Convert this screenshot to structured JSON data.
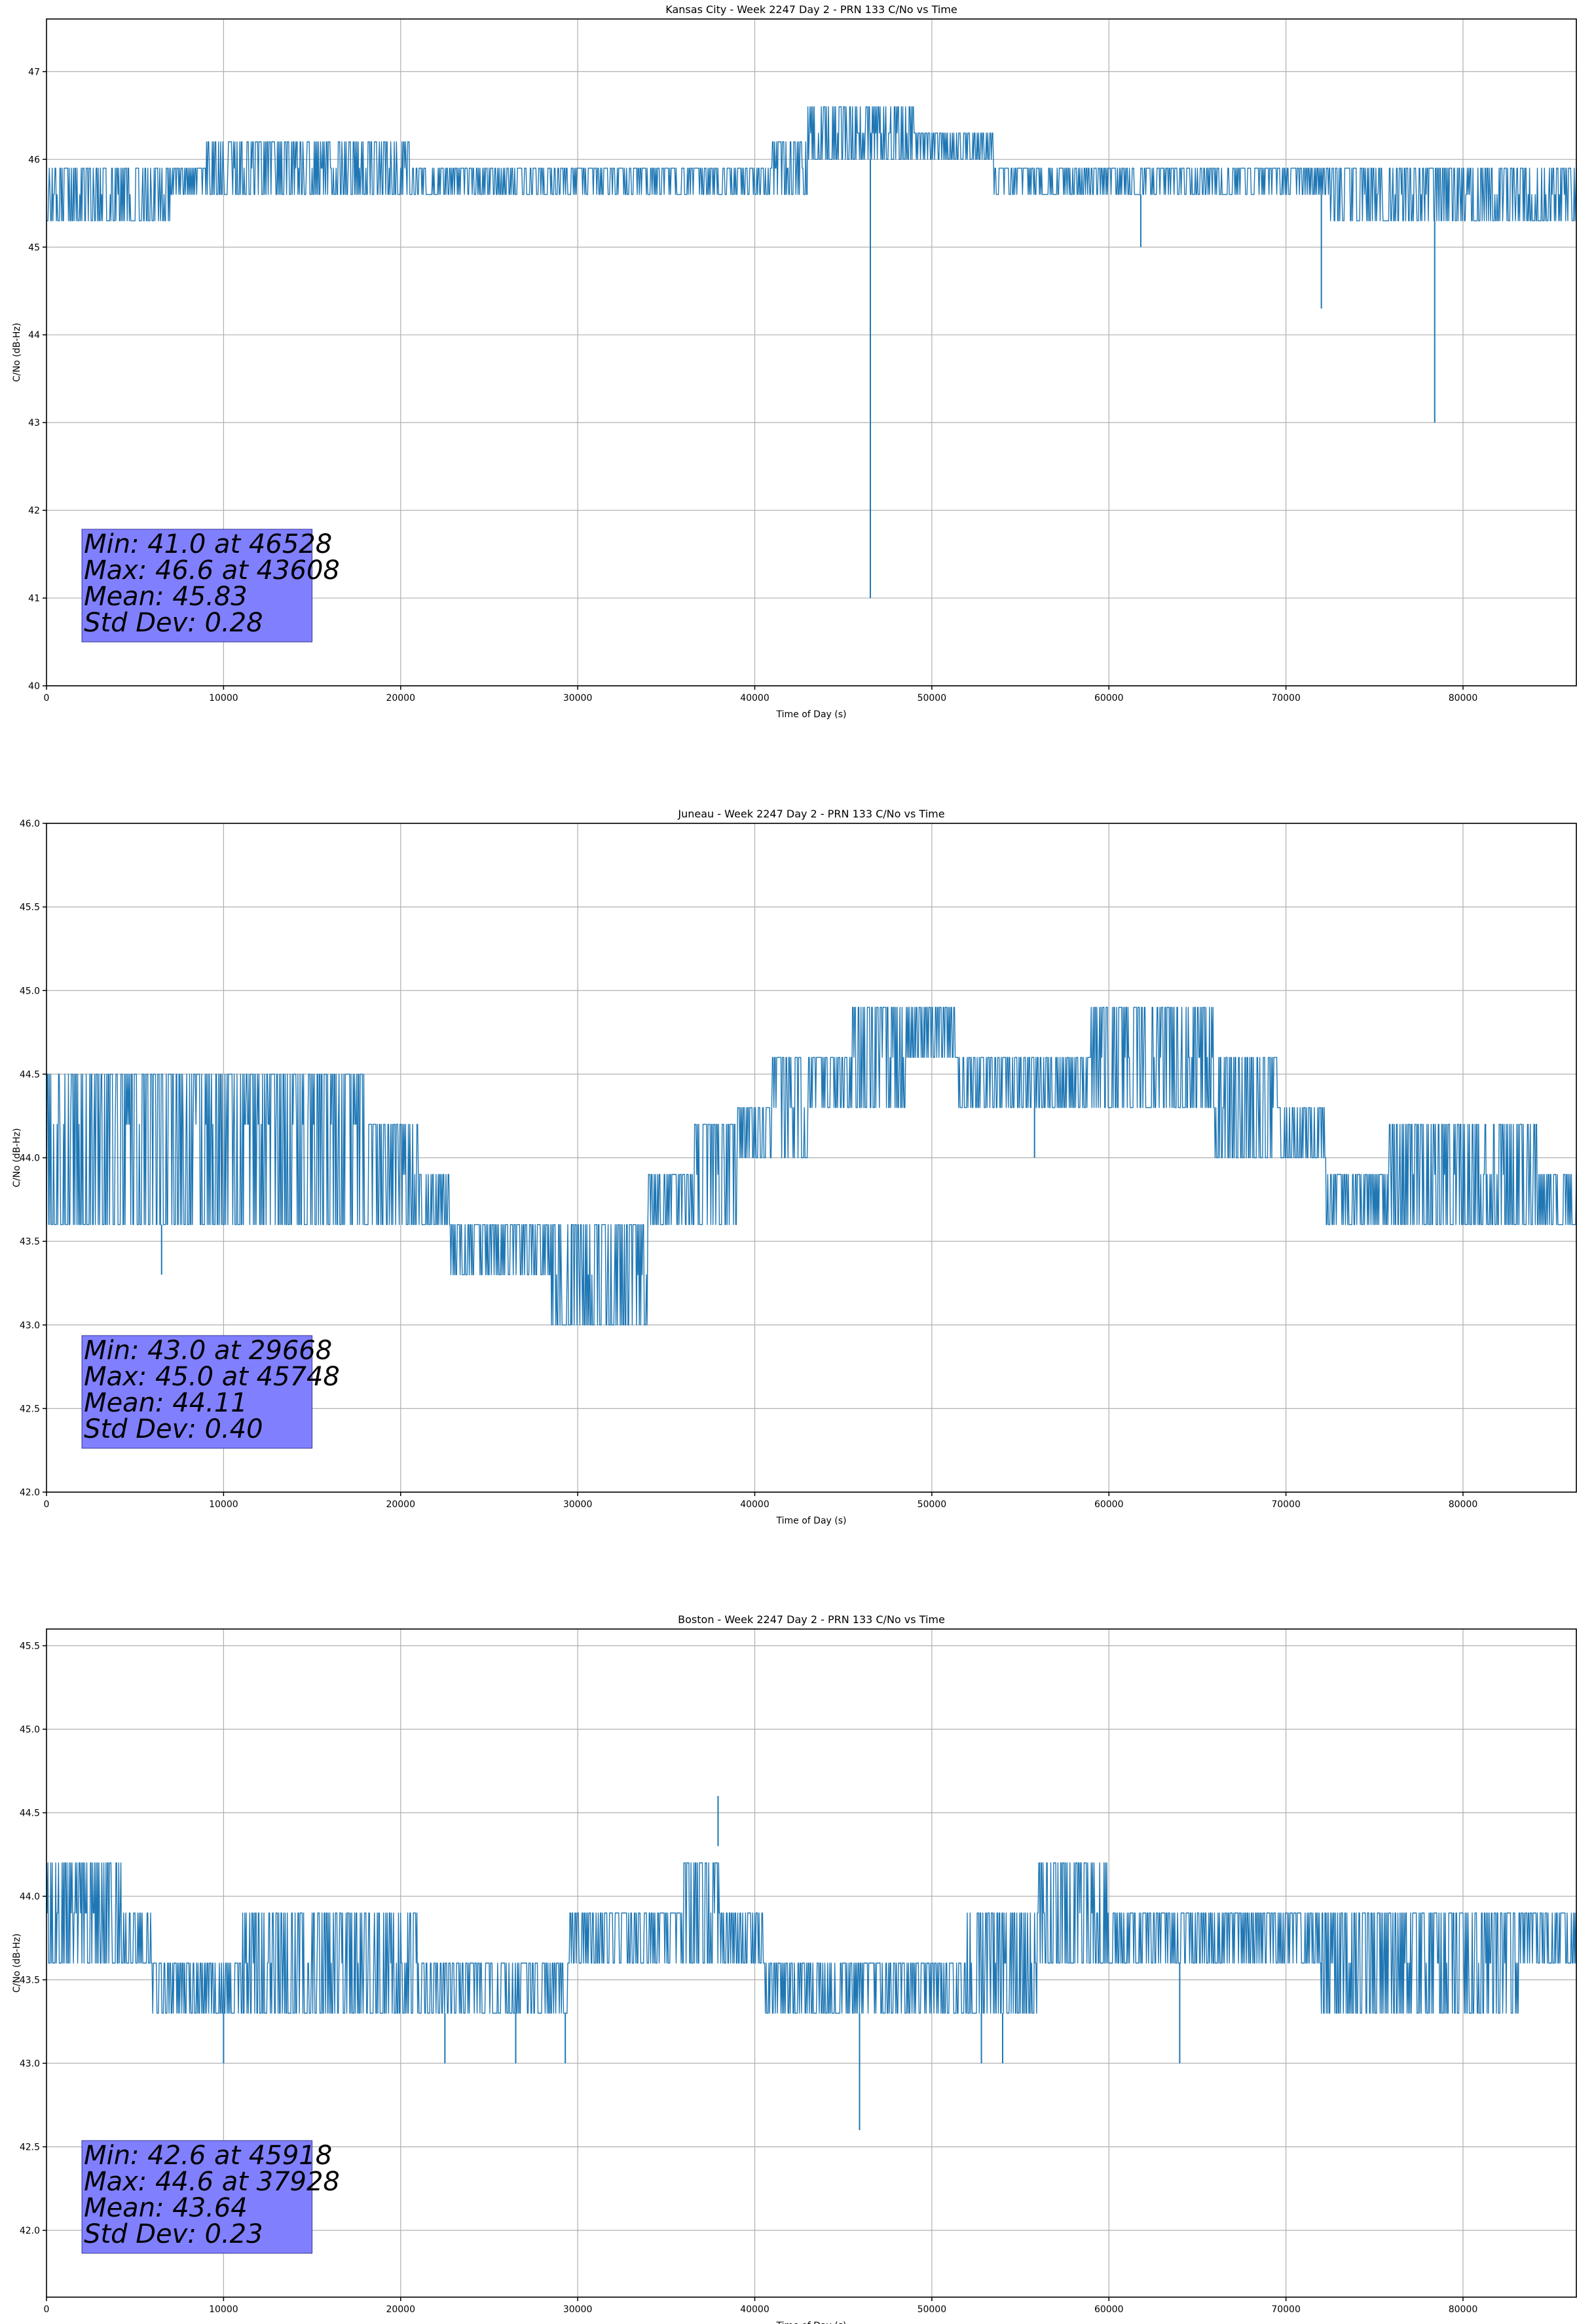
{
  "chart_data": [
    {
      "type": "line",
      "title": "Kansas City - Week 2247 Day 2 - PRN 133 C/No vs Time",
      "xlabel": "Time of Day (s)",
      "ylabel": "C/No (dB-Hz)",
      "xlim": [
        0,
        86400
      ],
      "ylim": [
        40,
        47.6
      ],
      "xticks": [
        0,
        10000,
        20000,
        30000,
        40000,
        50000,
        60000,
        70000,
        80000
      ],
      "xtick_labels": [
        "0",
        "10000",
        "20000",
        "30000",
        "40000",
        "50000",
        "60000",
        "70000",
        "80000"
      ],
      "yticks": [
        40,
        41,
        42,
        43,
        44,
        45,
        46,
        47
      ],
      "ytick_labels": [
        "40",
        "41",
        "42",
        "43",
        "44",
        "45",
        "46",
        "47"
      ],
      "grid": true,
      "color": "#1f77b4",
      "series": [
        {
          "name": "C/No",
          "band": [
            [
              0,
              45.3,
              46.0
            ],
            [
              3000,
              45.3,
              46.0
            ],
            [
              6000,
              45.3,
              46.0
            ],
            [
              8000,
              45.6,
              46.0
            ],
            [
              10000,
              45.6,
              46.3
            ],
            [
              14000,
              45.6,
              46.3
            ],
            [
              18000,
              45.6,
              46.3
            ],
            [
              20000,
              45.6,
              46.3
            ],
            [
              21000,
              45.6,
              46.0
            ],
            [
              25000,
              45.6,
              46.0
            ],
            [
              30000,
              45.6,
              46.0
            ],
            [
              35000,
              45.6,
              46.0
            ],
            [
              40000,
              45.6,
              46.0
            ],
            [
              42000,
              45.6,
              46.3
            ],
            [
              44000,
              46.0,
              46.6
            ],
            [
              48000,
              46.0,
              46.6
            ],
            [
              50000,
              46.0,
              46.3
            ],
            [
              53000,
              46.0,
              46.3
            ],
            [
              54000,
              45.6,
              46.0
            ],
            [
              60000,
              45.6,
              46.0
            ],
            [
              65000,
              45.6,
              46.0
            ],
            [
              70000,
              45.6,
              46.0
            ],
            [
              75000,
              45.3,
              46.0
            ],
            [
              80000,
              45.3,
              46.0
            ],
            [
              86400,
              45.3,
              46.0
            ]
          ],
          "spikes": [
            [
              46528,
              41.0
            ],
            [
              61800,
              45.0
            ],
            [
              72000,
              44.3
            ],
            [
              78400,
              43.0
            ]
          ]
        }
      ],
      "annotation": [
        "Min: 41.0 at 46528",
        "Max: 46.6 at 43608",
        "Mean: 45.83",
        "Std Dev: 0.28"
      ],
      "annotation_placement": "bottom-left"
    },
    {
      "type": "line",
      "title": "Juneau - Week 2247 Day 2 - PRN 133 C/No vs Time",
      "xlabel": "Time of Day (s)",
      "ylabel": "C/No (dB-Hz)",
      "xlim": [
        0,
        86400
      ],
      "ylim": [
        42,
        46
      ],
      "xticks": [
        0,
        10000,
        20000,
        30000,
        40000,
        50000,
        60000,
        70000,
        80000
      ],
      "xtick_labels": [
        "0",
        "10000",
        "20000",
        "30000",
        "40000",
        "50000",
        "60000",
        "70000",
        "80000"
      ],
      "yticks": [
        42.0,
        42.5,
        43.0,
        43.5,
        44.0,
        44.5,
        45.0,
        45.5,
        46.0
      ],
      "ytick_labels": [
        "42.0",
        "42.5",
        "43.0",
        "43.5",
        "44.0",
        "44.5",
        "45.0",
        "45.5",
        "46.0"
      ],
      "grid": true,
      "color": "#1f77b4",
      "series": [
        {
          "name": "C/No",
          "band": [
            [
              0,
              43.6,
              44.6
            ],
            [
              4000,
              43.6,
              44.6
            ],
            [
              8000,
              43.6,
              44.6
            ],
            [
              12000,
              43.6,
              44.6
            ],
            [
              16000,
              43.6,
              44.6
            ],
            [
              20000,
              43.6,
              44.3
            ],
            [
              22000,
              43.6,
              44.0
            ],
            [
              23500,
              43.3,
              43.6
            ],
            [
              27000,
              43.3,
              43.6
            ],
            [
              30000,
              43.0,
              43.6
            ],
            [
              33000,
              43.0,
              43.6
            ],
            [
              35000,
              43.6,
              44.0
            ],
            [
              38000,
              43.6,
              44.3
            ],
            [
              40000,
              44.0,
              44.3
            ],
            [
              42000,
              44.0,
              44.6
            ],
            [
              44000,
              44.3,
              44.6
            ],
            [
              47000,
              44.3,
              45.0
            ],
            [
              50000,
              44.6,
              45.0
            ],
            [
              53000,
              44.3,
              44.6
            ],
            [
              58000,
              44.3,
              44.6
            ],
            [
              60000,
              44.3,
              45.0
            ],
            [
              64000,
              44.3,
              45.0
            ],
            [
              68000,
              44.0,
              44.6
            ],
            [
              71000,
              44.0,
              44.3
            ],
            [
              73500,
              43.6,
              44.0
            ],
            [
              78000,
              43.6,
              44.3
            ],
            [
              82000,
              43.6,
              44.3
            ],
            [
              86400,
              43.6,
              44.0
            ]
          ],
          "spikes": [
            [
              6500,
              43.3
            ],
            [
              29668,
              43.0
            ],
            [
              55800,
              44.0
            ]
          ]
        }
      ],
      "annotation": [
        "Min: 43.0 at 29668",
        "Max: 45.0 at 45748",
        "Mean: 44.11",
        "Std Dev: 0.40"
      ],
      "annotation_placement": "bottom-left"
    },
    {
      "type": "line",
      "title": "Boston - Week 2247 Day 2 - PRN 133 C/No vs Time",
      "xlabel": "Time of Day (s)",
      "ylabel": "C/No (dB-Hz)",
      "xlim": [
        0,
        86400
      ],
      "ylim": [
        41.6,
        45.6
      ],
      "xticks": [
        0,
        10000,
        20000,
        30000,
        40000,
        50000,
        60000,
        70000,
        80000
      ],
      "xtick_labels": [
        "0",
        "10000",
        "20000",
        "30000",
        "40000",
        "50000",
        "60000",
        "70000",
        "80000"
      ],
      "yticks": [
        42.0,
        42.5,
        43.0,
        43.5,
        44.0,
        44.5,
        45.0,
        45.5
      ],
      "ytick_labels": [
        "42.0",
        "42.5",
        "43.0",
        "43.5",
        "44.0",
        "44.5",
        "45.0",
        "45.5"
      ],
      "grid": true,
      "color": "#1f77b4",
      "series": [
        {
          "name": "C/No",
          "band": [
            [
              0,
              43.6,
              44.3
            ],
            [
              3500,
              43.6,
              44.3
            ],
            [
              5000,
              43.6,
              44.0
            ],
            [
              7000,
              43.3,
              43.6
            ],
            [
              10000,
              43.3,
              43.6
            ],
            [
              12000,
              43.3,
              44.0
            ],
            [
              18000,
              43.3,
              44.0
            ],
            [
              24000,
              43.3,
              43.6
            ],
            [
              28000,
              43.3,
              43.6
            ],
            [
              31000,
              43.6,
              44.0
            ],
            [
              35000,
              43.6,
              44.0
            ],
            [
              37000,
              43.6,
              44.3
            ],
            [
              39000,
              43.6,
              44.0
            ],
            [
              42000,
              43.3,
              43.6
            ],
            [
              45000,
              43.3,
              43.6
            ],
            [
              50000,
              43.3,
              43.6
            ],
            [
              54000,
              43.3,
              44.0
            ],
            [
              58000,
              43.6,
              44.3
            ],
            [
              62000,
              43.6,
              44.0
            ],
            [
              66000,
              43.6,
              44.0
            ],
            [
              70000,
              43.6,
              44.0
            ],
            [
              74000,
              43.3,
              44.0
            ],
            [
              80000,
              43.3,
              44.0
            ],
            [
              86400,
              43.6,
              44.0
            ]
          ],
          "spikes": [
            [
              10000,
              43.0
            ],
            [
              22500,
              43.0
            ],
            [
              26500,
              43.0
            ],
            [
              29300,
              43.0
            ],
            [
              37928,
              44.6
            ],
            [
              45918,
              42.6
            ],
            [
              52800,
              43.0
            ],
            [
              54000,
              43.0
            ],
            [
              64000,
              43.0
            ]
          ]
        }
      ],
      "annotation": [
        "Min: 42.6 at 45918",
        "Max: 44.6 at 37928",
        "Mean: 43.64",
        "Std Dev: 0.23"
      ],
      "annotation_placement": "bottom-left"
    }
  ]
}
